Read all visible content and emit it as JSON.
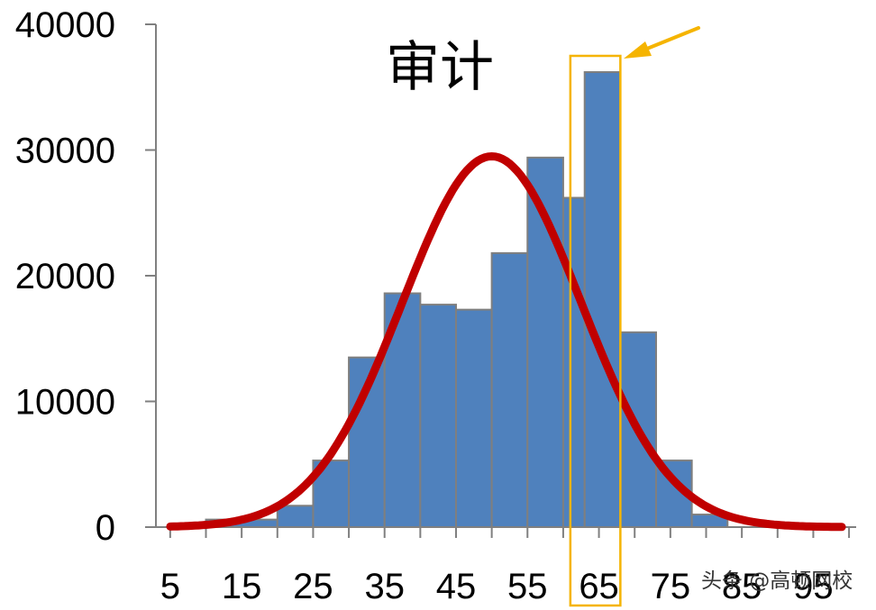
{
  "chart_data": {
    "type": "bar",
    "title": "审计",
    "bins": [
      [
        10,
        20,
        600
      ],
      [
        20,
        25,
        1700
      ],
      [
        25,
        30,
        5300
      ],
      [
        30,
        35,
        13500
      ],
      [
        35,
        40,
        18600
      ],
      [
        40,
        45,
        17700
      ],
      [
        45,
        50,
        17300
      ],
      [
        50,
        55,
        21800
      ],
      [
        55,
        60,
        29400
      ],
      [
        60,
        63,
        26200
      ],
      [
        63,
        68,
        36200
      ],
      [
        68,
        73,
        15500
      ],
      [
        73,
        78,
        5300
      ],
      [
        78,
        83,
        1000
      ]
    ],
    "x_ticks": [
      "5",
      "15",
      "25",
      "35",
      "45",
      "55",
      "65",
      "75",
      "85",
      "95"
    ],
    "y_ticks": [
      "0",
      "10000",
      "20000",
      "30000",
      "40000"
    ],
    "xlim": [
      3,
      101
    ],
    "ylim": [
      0,
      40000
    ],
    "curve": {
      "type": "normal",
      "mean": 50,
      "std": 12.5,
      "peak": 29500,
      "x_range": [
        5,
        99
      ],
      "color": "#c00000"
    },
    "highlight": {
      "x_range": [
        61,
        68
      ],
      "color": "#f5b400"
    },
    "bar_color": "#4f81bd",
    "bar_edge_color": "#7f7f7f",
    "grid": false
  },
  "watermark": "头条 @高顿网校"
}
